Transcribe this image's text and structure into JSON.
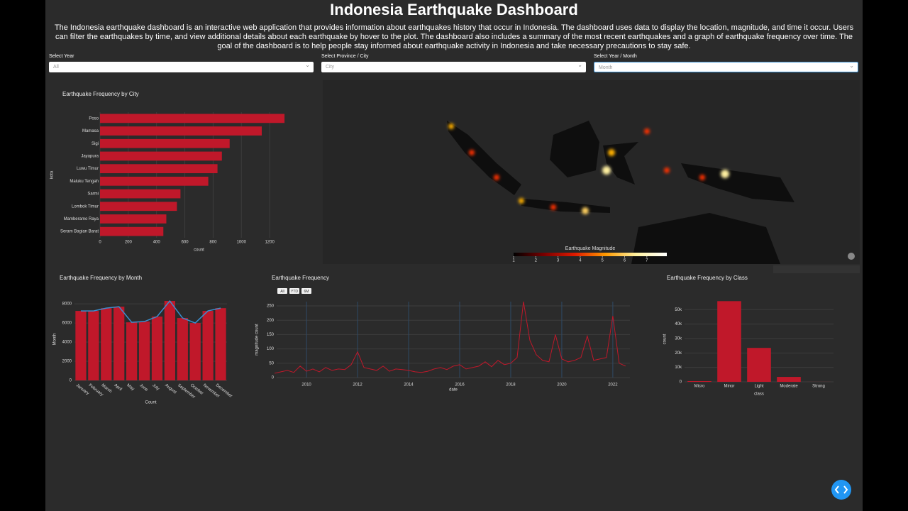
{
  "header": {
    "title": "Indonesia Earthquake Dashboard",
    "description": "The Indonesia earthquake dashboard is an interactive web application that provides information about earthquakes history that occur in Indonesia. The dashboard uses data to display the location, magnitude, and time it occur. Users can filter the earthquakes by time, and view additional details about each earthquake by hover to the plot. The dashboard also includes a summary of the most recent earthquakes and a graph of earthquake frequency over time. The goal of the dashboard is to help people stay informed about earthquake activity in Indonesia and take necessary precautions to stay safe."
  },
  "filters": [
    {
      "label": "Select Year",
      "value": "All"
    },
    {
      "label": "Select Province / City",
      "value": "City"
    },
    {
      "label": "Select Year / Month",
      "value": "Month"
    }
  ],
  "chart_data": [
    {
      "type": "bar",
      "orientation": "horizontal",
      "title": "Earthquake Frequency by City",
      "x_label": "count",
      "y_label": "kota",
      "categories": [
        "Poso",
        "Mamasa",
        "Sigi",
        "Jayapura",
        "Luwu Timur",
        "Maluku Tengah",
        "Sarmi",
        "Lombok Timur",
        "Mamberamo Raya",
        "Seram Bagian Barat"
      ],
      "values": [
        1305,
        1144,
        917,
        862,
        831,
        766,
        569,
        544,
        469,
        448
      ],
      "color": "#c0182a",
      "xlim": [
        0,
        1400
      ],
      "xticks": [
        0,
        200,
        400,
        600,
        800,
        1000,
        1200
      ],
      "grid": true
    },
    {
      "type": "map",
      "colorbar": {
        "title": "Earthquake Magnitude",
        "lim": [
          1,
          7.9
        ],
        "ticks": [
          1,
          2,
          3,
          4,
          5,
          6,
          7
        ],
        "colors": [
          "#000000",
          "#7a0000",
          "#e01a00",
          "#ff9a00",
          "#fff2a0",
          "#ffffff"
        ]
      }
    },
    {
      "type": "bar",
      "title": "Earthquake Frequency by Month",
      "x_label": "Count",
      "y_label": "Month",
      "categories": [
        "January",
        "February",
        "March",
        "April",
        "May",
        "June",
        "July",
        "August",
        "September",
        "October",
        "November",
        "December"
      ],
      "series": [
        {
          "type": "bar",
          "color": "#c0182a",
          "values": [
            7260,
            7260,
            7550,
            7700,
            6070,
            6150,
            6670,
            8300,
            6520,
            6000,
            7260,
            7550
          ]
        },
        {
          "type": "line",
          "color": "#3a8fd0",
          "values": [
            7260,
            7260,
            7550,
            7700,
            6070,
            6150,
            6670,
            8300,
            6520,
            6000,
            7260,
            7550
          ]
        }
      ],
      "ylim": [
        0,
        8600
      ],
      "yticks": [
        0,
        2000,
        4000,
        6000,
        8000
      ],
      "grid": true
    },
    {
      "type": "line",
      "title": "Earthquake Frequency",
      "x_label": "date",
      "y_label": "magnitude count",
      "range_buttons": [
        "All",
        "YTD",
        "6M"
      ],
      "x": [
        2008.75,
        2009,
        2009.25,
        2009.5,
        2009.75,
        2010,
        2010.25,
        2010.5,
        2010.75,
        2011,
        2011.25,
        2011.5,
        2011.75,
        2012,
        2012.25,
        2012.5,
        2012.75,
        2013,
        2013.25,
        2013.5,
        2013.75,
        2014,
        2014.25,
        2014.5,
        2014.75,
        2015,
        2015.25,
        2015.5,
        2015.75,
        2016,
        2016.25,
        2016.5,
        2016.75,
        2017,
        2017.25,
        2017.5,
        2017.75,
        2018,
        2018.25,
        2018.5,
        2018.75,
        2019,
        2019.25,
        2019.5,
        2019.75,
        2020,
        2020.25,
        2020.5,
        2020.75,
        2021,
        2021.25,
        2021.5,
        2021.75,
        2022,
        2022.25,
        2022.5
      ],
      "values": [
        15,
        20,
        25,
        18,
        40,
        22,
        30,
        20,
        35,
        25,
        30,
        28,
        45,
        90,
        35,
        30,
        25,
        40,
        22,
        30,
        28,
        25,
        20,
        18,
        22,
        30,
        35,
        28,
        40,
        45,
        30,
        35,
        40,
        55,
        38,
        60,
        45,
        50,
        70,
        265,
        130,
        80,
        60,
        55,
        150,
        65,
        55,
        60,
        70,
        145,
        60,
        65,
        70,
        215,
        50,
        40
      ],
      "color": "#c0182a",
      "xlim": [
        2008.83,
        2022.67
      ],
      "xticks": [
        2010,
        2012,
        2014,
        2016,
        2018,
        2020,
        2022
      ],
      "ylim": [
        0,
        265
      ],
      "yticks": [
        0,
        50,
        100,
        150,
        200,
        250
      ],
      "grid": true
    },
    {
      "type": "bar",
      "title": "Earthquake Frequency by Class",
      "x_label": "class",
      "y_label": "count",
      "categories": [
        "Micro",
        "Minor",
        "Light",
        "Moderate",
        "Strong"
      ],
      "values": [
        500,
        55900,
        23500,
        3400,
        30
      ],
      "color": "#c0182a",
      "ylim": [
        0,
        59000
      ],
      "yticks": [
        0,
        {
          "value": 10000,
          "label": "10k"
        },
        {
          "value": 20000,
          "label": "20k"
        },
        {
          "value": 30000,
          "label": "30k"
        },
        {
          "value": 40000,
          "label": "40k"
        },
        {
          "value": 50000,
          "label": "50k"
        }
      ],
      "grid": true
    }
  ]
}
